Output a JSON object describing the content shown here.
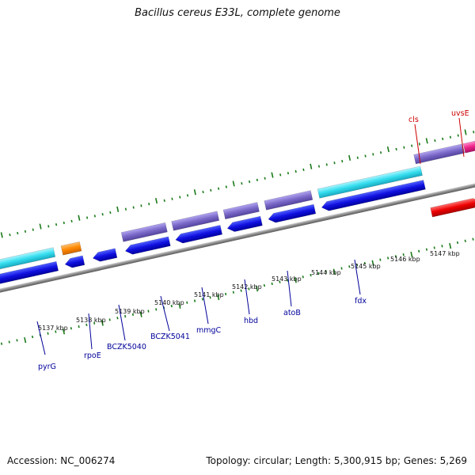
{
  "title": "Bacillus cereus E33L, complete genome",
  "footer": {
    "accession": "Accession: NC_006274",
    "summary": "Topology: circular; Length: 5,300,915 bp; Genes: 5,269"
  },
  "colors": {
    "background": "#ffffff",
    "backbone": "#8a8a8a",
    "ticks": "#1a7a1a",
    "label_blue": "#00009a",
    "label_red": "#cc0000",
    "blue": "#1010e0",
    "blue_dark": "#0000a0",
    "cyan": "#33ddee",
    "purple": "#7b68c8",
    "orange": "#ff8800",
    "red": "#ee0000",
    "pink": "#ee2288"
  },
  "scale_labels": [
    "5137 kbp",
    "5138 kbp",
    "5139 kbp",
    "5140 kbp",
    "5141 kbp",
    "5142 kbp",
    "5143 kbp",
    "5144 kbp",
    "5145 kbp",
    "5146 kbp",
    "5147 kbp"
  ],
  "gene_labels": [
    {
      "name": "pyrG",
      "color": "label_blue"
    },
    {
      "name": "rpoE",
      "color": "label_blue"
    },
    {
      "name": "BCZK5040",
      "color": "label_blue"
    },
    {
      "name": "BCZK5041",
      "color": "label_blue"
    },
    {
      "name": "mmgC",
      "color": "label_blue"
    },
    {
      "name": "hbd",
      "color": "label_blue"
    },
    {
      "name": "atoB",
      "color": "label_blue"
    },
    {
      "name": "fdx",
      "color": "label_blue"
    },
    {
      "name": "cls",
      "color": "label_red"
    },
    {
      "name": "uvsE",
      "color": "label_red"
    }
  ]
}
